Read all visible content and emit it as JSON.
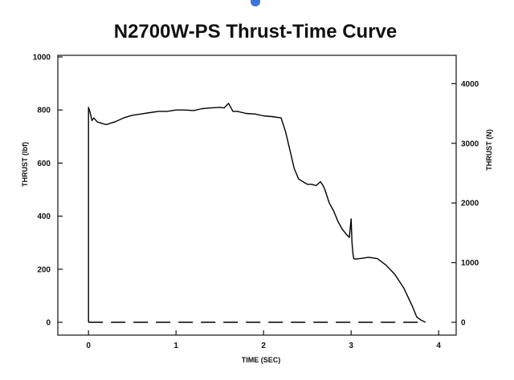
{
  "colors": {
    "accent_marker": "#3b73d9",
    "ink": "#111111"
  },
  "chart_data": {
    "type": "line",
    "title": "N2700W-PS Thrust-Time Curve",
    "xlabel": "TIME (SEC)",
    "ylabel": "THRUST (lbf)",
    "ylabel_right": "THRUST (N)",
    "xlim": [
      -0.35,
      4.2
    ],
    "ylim": [
      0,
      1000
    ],
    "ylim_right_N": [
      0,
      4448
    ],
    "x_ticks": [
      0,
      1,
      2,
      3,
      4
    ],
    "x_tick_labels": [
      "0",
      "1",
      "2",
      "3",
      "4"
    ],
    "y_ticks": [
      0,
      200,
      400,
      600,
      800,
      1000
    ],
    "y_tick_labels": [
      "0",
      "200",
      "400",
      "600",
      "800",
      "1000"
    ],
    "y_right_ticks": [
      0,
      1000,
      2000,
      3000,
      4000
    ],
    "y_right_tick_labels": [
      "0",
      "1000",
      "2000",
      "3000",
      "4000"
    ],
    "grid": false,
    "reference_line": {
      "y": 0,
      "style": "dashed",
      "x_range": [
        0,
        3.85
      ]
    },
    "series": [
      {
        "name": "Thrust",
        "x": [
          0.0,
          0.0,
          0.02,
          0.04,
          0.06,
          0.1,
          0.15,
          0.2,
          0.3,
          0.4,
          0.5,
          0.6,
          0.7,
          0.8,
          0.9,
          1.0,
          1.1,
          1.2,
          1.3,
          1.4,
          1.5,
          1.55,
          1.6,
          1.65,
          1.7,
          1.8,
          1.9,
          2.0,
          2.1,
          2.2,
          2.25,
          2.3,
          2.35,
          2.4,
          2.45,
          2.5,
          2.55,
          2.6,
          2.65,
          2.68,
          2.7,
          2.72,
          2.75,
          2.8,
          2.85,
          2.9,
          2.95,
          2.98,
          3.0,
          3.01,
          3.02,
          3.03,
          3.05,
          3.1,
          3.2,
          3.3,
          3.4,
          3.5,
          3.6,
          3.7,
          3.75,
          3.8,
          3.85
        ],
        "y": [
          0,
          810,
          790,
          760,
          770,
          755,
          750,
          745,
          755,
          770,
          780,
          785,
          790,
          795,
          795,
          800,
          800,
          798,
          805,
          808,
          810,
          808,
          825,
          795,
          795,
          787,
          785,
          778,
          775,
          770,
          720,
          650,
          580,
          540,
          530,
          520,
          520,
          515,
          530,
          515,
          500,
          480,
          450,
          420,
          380,
          350,
          330,
          320,
          390,
          300,
          260,
          240,
          238,
          240,
          245,
          240,
          215,
          180,
          130,
          60,
          20,
          8,
          0
        ]
      }
    ]
  }
}
